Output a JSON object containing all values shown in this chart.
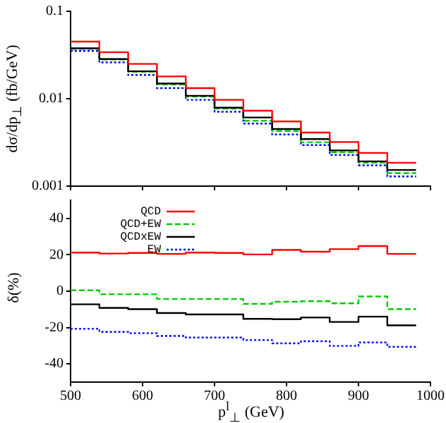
{
  "chart_data": [
    {
      "type": "histogram",
      "ylabel": "dσ/dp$_{⊥}$ (fb/GeV)",
      "bins": [
        500,
        540,
        580,
        620,
        660,
        700,
        740,
        780,
        820,
        860,
        900,
        940,
        980
      ],
      "xlim": [
        500,
        1000
      ],
      "xticks": [
        500,
        600,
        700,
        800,
        900,
        1000
      ],
      "ylim": [
        0.001,
        0.1
      ],
      "yticks": [
        0.001,
        0.01,
        0.1
      ],
      "log": "y",
      "grid": false,
      "legend": false,
      "tick_labels": "y",
      "series": [
        {
          "color": "#ff0000",
          "line_style": "solid",
          "values": [
            0.045,
            0.034,
            0.025,
            0.018,
            0.0132,
            0.0097,
            0.0073,
            0.0055,
            0.0041,
            0.0032,
            0.0024,
            0.00185
          ]
        },
        {
          "color": "#000000",
          "line_style": "solid",
          "values": [
            0.0377,
            0.0284,
            0.0206,
            0.0149,
            0.0108,
            0.0079,
            0.0061,
            0.0045,
            0.00345,
            0.00256,
            0.00192,
            0.00153
          ]
        },
        {
          "color": "#00cc00",
          "line_style": "dashed",
          "values": [
            0.0372,
            0.028,
            0.0203,
            0.01455,
            0.01055,
            0.0077,
            0.0056,
            0.00428,
            0.00317,
            0.00244,
            0.00185,
            0.00141
          ]
        },
        {
          "color": "#0000ff",
          "line_style": "dotted",
          "values": [
            0.0352,
            0.026,
            0.0187,
            0.0132,
            0.0097,
            0.0071,
            0.0052,
            0.0039,
            0.00295,
            0.00227,
            0.00173,
            0.00129
          ]
        }
      ]
    },
    {
      "type": "histogram",
      "xlabel": "p$^{l}$$_{⊥}$ (GeV)",
      "ylabel": "δ(%)",
      "bins": [
        500,
        540,
        580,
        620,
        660,
        700,
        740,
        780,
        820,
        860,
        900,
        940,
        980
      ],
      "xlim": [
        500,
        1000
      ],
      "xticks": [
        500,
        600,
        700,
        800,
        900,
        1000
      ],
      "ylim": [
        -50,
        50
      ],
      "yticks": [
        -40,
        -20,
        0,
        20,
        40
      ],
      "grid": false,
      "legend": "top left",
      "series": [
        {
          "name": "QCD",
          "color": "#ff0000",
          "line_style": "solid",
          "values": [
            21.2,
            20.7,
            21,
            20.5,
            21.2,
            21,
            20.2,
            22.7,
            21.7,
            23.1,
            24.8,
            20.5
          ]
        },
        {
          "name": "QCD+EW",
          "color": "#00cc00",
          "line_style": "dashed",
          "values": [
            0.5,
            -1.7,
            -1.7,
            -4.3,
            -4.3,
            -4.3,
            -7,
            -5.8,
            -5.5,
            -6.7,
            -2.9,
            -9.9
          ]
        },
        {
          "name": "QCDxEW",
          "color": "#000000",
          "line_style": "solid",
          "values": [
            -7.2,
            -9.2,
            -9.9,
            -12,
            -12.8,
            -12.8,
            -15.2,
            -15.4,
            -14.5,
            -16.9,
            -14,
            -18.8
          ]
        },
        {
          "name": "EW",
          "color": "#0000ff",
          "line_style": "dotted",
          "values": [
            -20.7,
            -22.4,
            -23.1,
            -24.6,
            -25.5,
            -25.5,
            -26.9,
            -28.7,
            -27.5,
            -30.1,
            -28.2,
            -30.6
          ]
        }
      ]
    }
  ]
}
